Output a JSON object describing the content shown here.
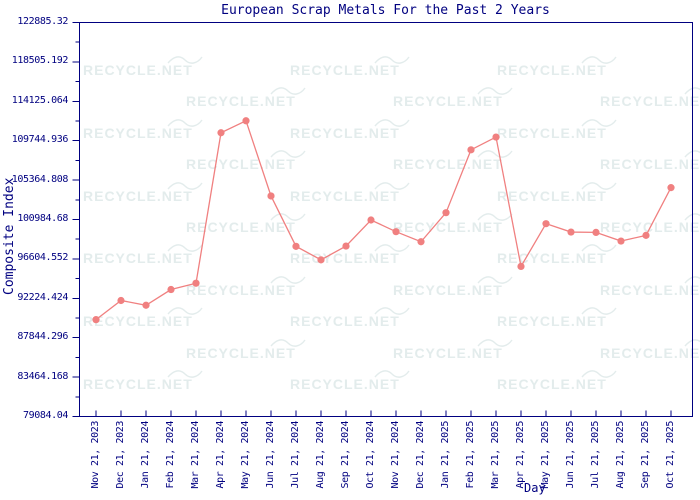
{
  "page": {
    "background": "#ffffff"
  },
  "watermark": {
    "text": "RECYCLE.NET",
    "color": "#e3ecec"
  },
  "chart_data": {
    "type": "line",
    "title": "European Scrap Metals For the Past 2 Years",
    "xlabel": "Day",
    "ylabel": "Composite Index",
    "legend": "none",
    "grid": false,
    "ylim": [
      79084.04,
      122885.32
    ],
    "y_tick_labels": [
      "122885.32",
      "118505.192",
      "114125.064",
      "109744.936",
      "105364.808",
      "100984.68",
      "96604.552",
      "92224.424",
      "87844.296",
      "83464.168",
      "79084.04"
    ],
    "x_tick_labels": [
      "Nov 21, 2023",
      "Dec 21, 2023",
      "Jan 21, 2024",
      "Feb 21, 2024",
      "Mar 21, 2024",
      "Apr 21, 2024",
      "May 21, 2024",
      "Jun 21, 2024",
      "Jul 21, 2024",
      "Aug 21, 2024",
      "Sep 21, 2024",
      "Oct 21, 2024",
      "Nov 21, 2024",
      "Dec 21, 2024",
      "Jan 21, 2025",
      "Feb 21, 2025",
      "Mar 21, 2025",
      "Apr 21, 2025",
      "May 21, 2025",
      "Jun 21, 2025",
      "Jul 21, 2025",
      "Aug 21, 2025",
      "Sep 21, 2025",
      "Oct 21, 2025"
    ],
    "series": [
      {
        "name": "Composite Index",
        "marker": "dot",
        "color": "#f08080",
        "values": [
          89850,
          91980,
          91450,
          93200,
          93900,
          110630,
          111960,
          103600,
          98000,
          96500,
          98030,
          100930,
          99630,
          98510,
          101740,
          108730,
          110150,
          95770,
          100520,
          99590,
          99550,
          98590,
          99220,
          104530
        ]
      }
    ],
    "colors": {
      "axis": "#000080",
      "text": "#000080",
      "line": "#f08080"
    }
  }
}
